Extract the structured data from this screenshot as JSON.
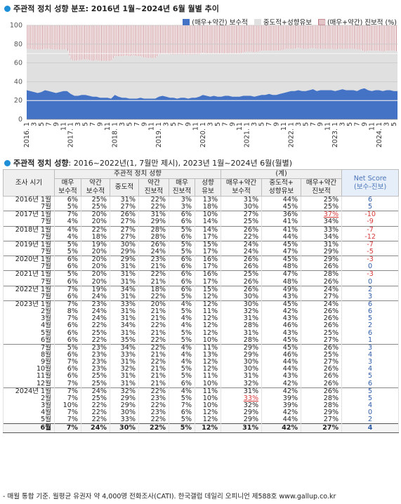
{
  "chart_section": {
    "title": "주관적 정치 성향 분포: 2016년 1월~2024년 6월 월별 추이"
  },
  "chart_data": [
    {
      "type": "area",
      "title": "주관적 정치 성향 분포: 2016년 1월~2024년 6월 월별 추이",
      "series": [
        {
          "name": "(매우+약간) 보수적",
          "color": "#4472c4",
          "values": [
            31,
            30,
            29,
            28,
            29,
            31,
            30,
            29,
            28,
            29,
            30,
            30,
            27,
            25,
            25,
            26,
            26,
            25,
            24,
            24,
            23,
            23,
            23,
            22,
            26,
            24,
            23,
            23,
            22,
            22,
            22,
            23,
            22,
            22,
            22,
            22,
            24,
            25,
            24,
            23,
            23,
            22,
            23,
            23,
            22,
            23,
            23,
            24,
            26,
            25,
            24,
            25,
            24,
            24,
            25,
            25,
            24,
            24,
            24,
            25,
            25,
            25,
            24,
            25,
            26,
            26,
            27,
            26,
            26,
            27,
            28,
            29,
            30,
            30,
            31,
            30,
            30,
            31,
            32,
            30,
            31,
            31,
            31,
            31,
            30,
            31,
            32,
            31,
            31,
            31,
            30,
            32,
            33,
            31,
            30,
            31,
            31,
            30,
            31,
            31,
            30,
            30
          ]
        },
        {
          "name": "중도적+성향유보",
          "color": "#e0e0e0",
          "values": [
            44,
            45,
            45,
            46,
            45,
            44,
            45,
            45,
            46,
            45,
            44,
            45,
            37,
            37,
            38,
            37,
            38,
            38,
            38,
            39,
            39,
            39,
            39,
            40,
            41,
            43,
            44,
            45,
            45,
            46,
            45,
            44,
            44,
            43,
            43,
            43,
            45,
            45,
            46,
            46,
            46,
            47,
            46,
            46,
            47,
            46,
            46,
            45,
            45,
            45,
            46,
            45,
            46,
            46,
            45,
            45,
            46,
            46,
            46,
            46,
            47,
            47,
            47,
            47,
            47,
            47,
            46,
            47,
            47,
            46,
            46,
            46,
            45,
            45,
            45,
            45,
            45,
            44,
            44,
            45,
            44,
            44,
            44,
            44,
            44,
            44,
            43,
            44,
            44,
            44,
            44,
            42,
            39,
            42,
            43,
            42,
            42,
            42,
            42,
            42,
            43,
            42
          ]
        },
        {
          "name": "(매우+약간) 진보적 (%)",
          "color": "#c98f94",
          "values": [
            25,
            25,
            26,
            26,
            26,
            25,
            25,
            26,
            26,
            26,
            26,
            25,
            36,
            38,
            37,
            37,
            36,
            37,
            38,
            37,
            38,
            38,
            38,
            38,
            33,
            33,
            33,
            32,
            33,
            32,
            33,
            33,
            34,
            35,
            35,
            35,
            31,
            30,
            30,
            31,
            31,
            31,
            31,
            31,
            31,
            31,
            31,
            31,
            29,
            30,
            30,
            30,
            30,
            30,
            30,
            30,
            30,
            30,
            30,
            29,
            28,
            28,
            29,
            28,
            27,
            27,
            27,
            27,
            27,
            27,
            26,
            25,
            25,
            25,
            24,
            25,
            25,
            25,
            24,
            25,
            25,
            25,
            25,
            25,
            26,
            25,
            25,
            25,
            25,
            25,
            26,
            26,
            28,
            27,
            27,
            27,
            27,
            28,
            27,
            27,
            27,
            28
          ]
        }
      ],
      "x_tick_labels": [
        "2016. 1",
        "3",
        "5",
        "7",
        "9",
        "11",
        "2017. 1",
        "3",
        "5",
        "7",
        "9",
        "11",
        "2018. 1",
        "3",
        "5",
        "7",
        "9",
        "11",
        "2019. 1",
        "3",
        "5",
        "7",
        "9",
        "11",
        "2020. 1",
        "3",
        "5",
        "7",
        "9",
        "11",
        "2021. 1",
        "3",
        "5",
        "7",
        "9",
        "11",
        "2022. 1",
        "3",
        "5",
        "7",
        "9",
        "11",
        "2023. 1",
        "3",
        "5",
        "7",
        "9",
        "11",
        "2024. 1",
        "3",
        "5"
      ],
      "y_ticks": [
        0,
        20,
        40,
        60,
        80,
        100
      ],
      "ylim": [
        0,
        100
      ],
      "legend_placement": "top-right",
      "grid": true
    }
  ],
  "table_section": {
    "title_bold": "주관적 정치 성향",
    "title_rest": ": 2016~2022년(1, 7월만 제시), 2023년 1월~2024년 6월(월별)"
  },
  "table": {
    "group_header": "주관적 정치 성향",
    "sum_header": "(계)",
    "period_header": "조사 시기",
    "col_headers": [
      "매우\n보수적",
      "약간\n보수적",
      "중도적",
      "약간\n진보적",
      "매우\n진보적",
      "성향\n유보",
      "매우+약간\n보수적",
      "중도적+\n성향유보",
      "매우+약간\n진보적"
    ],
    "net_header": "Net Score\n(보수-진보)",
    "rows": [
      {
        "label": "2016년 1월",
        "cells": [
          "6%",
          "25%",
          "31%",
          "22%",
          "3%",
          "13%",
          "31%",
          "44%",
          "25%"
        ],
        "net": "6"
      },
      {
        "label": "7월",
        "cells": [
          "5%",
          "25%",
          "27%",
          "22%",
          "3%",
          "18%",
          "30%",
          "45%",
          "25%"
        ],
        "net": "5"
      },
      {
        "label": "2017년 1월",
        "cells": [
          "7%",
          "20%",
          "26%",
          "31%",
          "6%",
          "10%",
          "27%",
          "36%",
          "37%"
        ],
        "net": "-10",
        "red": [
          8
        ],
        "sep": true
      },
      {
        "label": "7월",
        "cells": [
          "4%",
          "20%",
          "27%",
          "29%",
          "6%",
          "14%",
          "25%",
          "41%",
          "34%"
        ],
        "net": "-9"
      },
      {
        "label": "2018년 1월",
        "cells": [
          "4%",
          "22%",
          "27%",
          "28%",
          "5%",
          "14%",
          "26%",
          "41%",
          "33%"
        ],
        "net": "-7",
        "sep": true
      },
      {
        "label": "7월",
        "cells": [
          "4%",
          "18%",
          "27%",
          "28%",
          "6%",
          "17%",
          "22%",
          "44%",
          "34%"
        ],
        "net": "-12"
      },
      {
        "label": "2019년 1월",
        "cells": [
          "5%",
          "19%",
          "30%",
          "26%",
          "5%",
          "15%",
          "24%",
          "45%",
          "31%"
        ],
        "net": "-7",
        "sep": true
      },
      {
        "label": "7월",
        "cells": [
          "5%",
          "20%",
          "29%",
          "24%",
          "5%",
          "17%",
          "24%",
          "47%",
          "29%"
        ],
        "net": "-5"
      },
      {
        "label": "2020년 1월",
        "cells": [
          "6%",
          "20%",
          "29%",
          "23%",
          "6%",
          "16%",
          "26%",
          "45%",
          "29%"
        ],
        "net": "-3",
        "sep": true
      },
      {
        "label": "7월",
        "cells": [
          "6%",
          "20%",
          "31%",
          "21%",
          "6%",
          "17%",
          "26%",
          "48%",
          "26%"
        ],
        "net": "0"
      },
      {
        "label": "2021년 1월",
        "cells": [
          "5%",
          "20%",
          "31%",
          "22%",
          "6%",
          "16%",
          "25%",
          "47%",
          "28%"
        ],
        "net": "-3",
        "sep": true
      },
      {
        "label": "7월",
        "cells": [
          "6%",
          "20%",
          "31%",
          "21%",
          "6%",
          "17%",
          "26%",
          "48%",
          "26%"
        ],
        "net": "0"
      },
      {
        "label": "2022년 1월",
        "cells": [
          "7%",
          "19%",
          "34%",
          "18%",
          "6%",
          "15%",
          "26%",
          "49%",
          "24%"
        ],
        "net": "2",
        "sep": true
      },
      {
        "label": "7월",
        "cells": [
          "6%",
          "24%",
          "31%",
          "22%",
          "5%",
          "12%",
          "30%",
          "43%",
          "27%"
        ],
        "net": "3"
      },
      {
        "label": "2023년 1월",
        "cells": [
          "7%",
          "23%",
          "33%",
          "20%",
          "4%",
          "12%",
          "30%",
          "45%",
          "24%"
        ],
        "net": "6",
        "sep": true
      },
      {
        "label": "2월",
        "cells": [
          "8%",
          "24%",
          "31%",
          "21%",
          "5%",
          "11%",
          "32%",
          "42%",
          "26%"
        ],
        "net": "6"
      },
      {
        "label": "3월",
        "cells": [
          "7%",
          "24%",
          "31%",
          "21%",
          "4%",
          "12%",
          "31%",
          "43%",
          "26%"
        ],
        "net": "5"
      },
      {
        "label": "4월",
        "cells": [
          "6%",
          "22%",
          "34%",
          "22%",
          "4%",
          "12%",
          "28%",
          "46%",
          "26%"
        ],
        "net": "2"
      },
      {
        "label": "5월",
        "cells": [
          "6%",
          "25%",
          "31%",
          "21%",
          "5%",
          "12%",
          "31%",
          "43%",
          "25%"
        ],
        "net": "6"
      },
      {
        "label": "6월",
        "cells": [
          "6%",
          "22%",
          "35%",
          "22%",
          "5%",
          "10%",
          "28%",
          "45%",
          "27%"
        ],
        "net": "1"
      },
      {
        "label": "7월",
        "cells": [
          "5%",
          "23%",
          "34%",
          "22%",
          "4%",
          "11%",
          "29%",
          "45%",
          "26%"
        ],
        "net": "3",
        "sep": true
      },
      {
        "label": "8월",
        "cells": [
          "6%",
          "23%",
          "33%",
          "21%",
          "4%",
          "13%",
          "29%",
          "46%",
          "25%"
        ],
        "net": "4"
      },
      {
        "label": "9월",
        "cells": [
          "7%",
          "23%",
          "31%",
          "22%",
          "4%",
          "12%",
          "30%",
          "44%",
          "27%"
        ],
        "net": "3"
      },
      {
        "label": "10월",
        "cells": [
          "6%",
          "23%",
          "32%",
          "21%",
          "5%",
          "12%",
          "30%",
          "44%",
          "26%"
        ],
        "net": "4"
      },
      {
        "label": "11월",
        "cells": [
          "6%",
          "25%",
          "31%",
          "21%",
          "5%",
          "11%",
          "31%",
          "43%",
          "26%"
        ],
        "net": "5"
      },
      {
        "label": "12월",
        "cells": [
          "7%",
          "25%",
          "31%",
          "21%",
          "6%",
          "10%",
          "32%",
          "42%",
          "26%"
        ],
        "net": "6"
      },
      {
        "label": "2024년 1월",
        "cells": [
          "7%",
          "24%",
          "32%",
          "22%",
          "4%",
          "11%",
          "31%",
          "42%",
          "26%"
        ],
        "net": "5",
        "sep": true
      },
      {
        "label": "2월",
        "cells": [
          "7%",
          "25%",
          "29%",
          "23%",
          "5%",
          "10%",
          "33%",
          "39%",
          "28%"
        ],
        "net": "5",
        "red": [
          6
        ]
      },
      {
        "label": "3월",
        "cells": [
          "10%",
          "22%",
          "29%",
          "22%",
          "7%",
          "10%",
          "32%",
          "39%",
          "28%"
        ],
        "net": "4"
      },
      {
        "label": "4월",
        "cells": [
          "7%",
          "22%",
          "30%",
          "23%",
          "6%",
          "12%",
          "29%",
          "42%",
          "29%"
        ],
        "net": "0"
      },
      {
        "label": "5월",
        "cells": [
          "7%",
          "22%",
          "33%",
          "22%",
          "5%",
          "12%",
          "29%",
          "44%",
          "27%"
        ],
        "net": "2"
      }
    ],
    "total_row": {
      "label": "6월",
      "cells": [
        "7%",
        "24%",
        "30%",
        "22%",
        "5%",
        "12%",
        "31%",
        "42%",
        "27%"
      ],
      "net": "4"
    }
  },
  "footnote": "- 매월 통합 기준. 월평균 유권자 약 4,000명 전화조사(CATI). 한국갤럽 데일리 오피니언 제588호 www.gallup.co.kr"
}
